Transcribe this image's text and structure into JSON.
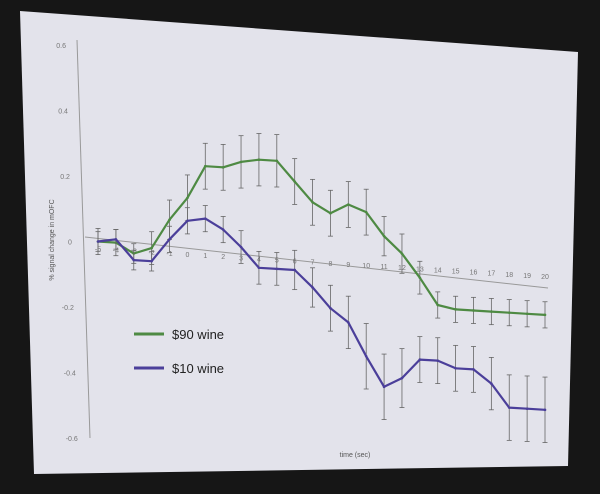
{
  "chart_data": {
    "type": "line",
    "xlabel": "time (sec)",
    "ylabel": "% signal change in mOFC",
    "x_ticks": [
      -5,
      -4,
      -3,
      -2,
      -1,
      0,
      1,
      2,
      3,
      4,
      5,
      6,
      7,
      8,
      9,
      10,
      11,
      12,
      13,
      14,
      15,
      16,
      17,
      18,
      19,
      20
    ],
    "y_ticks": [
      "0.6",
      "0.4",
      "0.2",
      "0",
      "-0.2",
      "-0.4",
      "-0.6"
    ],
    "ylim": [
      -0.6,
      0.6
    ],
    "xlim": [
      -5,
      20
    ],
    "grid": false,
    "legend_position": "bottom-left",
    "x": [
      -5,
      -4,
      -3,
      -2,
      -1,
      0,
      1,
      2,
      3,
      4,
      5,
      6,
      7,
      8,
      9,
      10,
      11,
      12,
      13,
      14,
      15,
      16,
      17,
      18,
      19,
      20
    ],
    "series": [
      {
        "name": "$90 wine",
        "color": "#4e8a43",
        "values": [
          0.0,
          0.0,
          -0.03,
          -0.01,
          0.08,
          0.15,
          0.25,
          0.25,
          0.27,
          0.28,
          0.28,
          0.22,
          0.16,
          0.13,
          0.16,
          0.14,
          0.07,
          0.02,
          -0.05,
          -0.13,
          -0.14,
          -0.14,
          -0.14,
          -0.14,
          -0.14,
          -0.14
        ],
        "errors": [
          0.04,
          0.04,
          0.03,
          0.05,
          0.06,
          0.07,
          0.07,
          0.07,
          0.08,
          0.08,
          0.08,
          0.07,
          0.07,
          0.07,
          0.07,
          0.07,
          0.06,
          0.06,
          0.05,
          0.04,
          0.04,
          0.04,
          0.04,
          0.04,
          0.04,
          0.04
        ]
      },
      {
        "name": "$10 wine",
        "color": "#4b3f9a",
        "values": [
          0.0,
          0.01,
          -0.05,
          -0.05,
          0.02,
          0.08,
          0.09,
          0.06,
          0.01,
          -0.05,
          -0.05,
          -0.05,
          -0.1,
          -0.16,
          -0.2,
          -0.3,
          -0.39,
          -0.36,
          -0.3,
          -0.3,
          -0.32,
          -0.32,
          -0.36,
          -0.43,
          -0.43,
          -0.43
        ],
        "errors": [
          0.03,
          0.03,
          0.03,
          0.03,
          0.04,
          0.04,
          0.04,
          0.04,
          0.05,
          0.05,
          0.05,
          0.06,
          0.06,
          0.07,
          0.08,
          0.1,
          0.1,
          0.09,
          0.07,
          0.07,
          0.07,
          0.07,
          0.08,
          0.1,
          0.1,
          0.1
        ]
      }
    ]
  }
}
